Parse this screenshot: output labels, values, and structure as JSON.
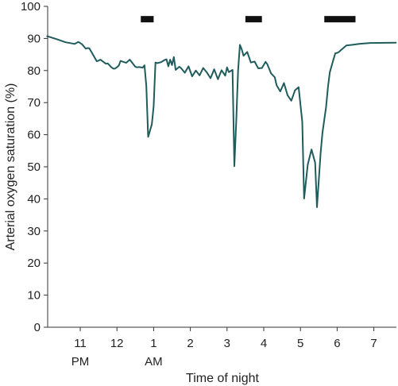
{
  "chart_data": {
    "type": "line",
    "xlabel": "Time of night",
    "ylabel": "Arterial oxygen saturation (%)",
    "xlim": [
      22.1,
      30.6
    ],
    "ylim": [
      0,
      100
    ],
    "y_ticks": [
      0,
      10,
      20,
      30,
      40,
      50,
      60,
      70,
      80,
      90,
      100
    ],
    "x_ticks": [
      {
        "value": 23,
        "label": "11",
        "sublabel": "PM"
      },
      {
        "value": 24,
        "label": "12",
        "sublabel": ""
      },
      {
        "value": 25,
        "label": "1",
        "sublabel": "AM"
      },
      {
        "value": 26,
        "label": "2",
        "sublabel": ""
      },
      {
        "value": 27,
        "label": "3",
        "sublabel": ""
      },
      {
        "value": 28,
        "label": "4",
        "sublabel": ""
      },
      {
        "value": 29,
        "label": "5",
        "sublabel": ""
      },
      {
        "value": 30,
        "label": "6",
        "sublabel": ""
      },
      {
        "value": 31,
        "label": "7",
        "sublabel": ""
      }
    ],
    "grid": false,
    "line_color": "#1f5c5c",
    "bar_color": "#111111",
    "event_bars": [
      {
        "start": 24.65,
        "end": 25.0,
        "y": 96
      },
      {
        "start": 27.5,
        "end": 27.95,
        "y": 96
      },
      {
        "start": 29.65,
        "end": 30.5,
        "y": 96
      }
    ],
    "series": [
      {
        "x": [
          22.1,
          22.35,
          22.6,
          22.85,
          22.95,
          23.05,
          23.15,
          23.2,
          23.25,
          23.45,
          23.5,
          23.55,
          23.7,
          23.75,
          23.85,
          23.9,
          23.95,
          24.05,
          24.1,
          24.25,
          24.35,
          24.5,
          24.55,
          24.6,
          24.7,
          24.75,
          24.8,
          24.85,
          24.95,
          25.0,
          25.05,
          25.1,
          25.2,
          25.3,
          25.35,
          25.4,
          25.45,
          25.5,
          25.55,
          25.6,
          25.7,
          25.75,
          25.85,
          25.95,
          26.05,
          26.15,
          26.25,
          26.35,
          26.45,
          26.55,
          26.65,
          26.75,
          26.85,
          26.95,
          27.0,
          27.05,
          27.15,
          27.2,
          27.25,
          27.3,
          27.35,
          27.4,
          27.45,
          27.55,
          27.65,
          27.75,
          27.8,
          27.85,
          27.95,
          28.05,
          28.1,
          28.2,
          28.3,
          28.35,
          28.45,
          28.55,
          28.65,
          28.75,
          28.85,
          28.95,
          29.05,
          29.1,
          29.2,
          29.3,
          29.4,
          29.45,
          29.55,
          29.6,
          29.7,
          29.75,
          29.8,
          29.9,
          29.95,
          30.0,
          30.05,
          30.1,
          30.15,
          30.25,
          30.4,
          30.6,
          30.9,
          31.6
        ],
        "y": [
          90.7,
          89.8,
          88.8,
          88.3,
          88.9,
          88.2,
          86.8,
          87.0,
          86.9,
          82.9,
          83.1,
          83.4,
          82.1,
          82.2,
          81.0,
          80.6,
          80.6,
          81.5,
          83.0,
          82.4,
          83.4,
          81.2,
          81.0,
          81.1,
          80.9,
          81.6,
          75.1,
          59.3,
          63.2,
          68.8,
          82.5,
          82.3,
          82.6,
          83.3,
          83.5,
          81.3,
          83.4,
          81.7,
          84.2,
          80.2,
          81.2,
          80.7,
          79.3,
          81.3,
          78.2,
          80.0,
          78.5,
          80.8,
          79.4,
          77.6,
          80.4,
          77.3,
          80.1,
          78.4,
          81.0,
          79.5,
          80.2,
          50.2,
          64.3,
          80.0,
          88.0,
          86.6,
          84.6,
          85.8,
          82.5,
          82.8,
          81.7,
          80.7,
          80.8,
          82.7,
          81.9,
          79.1,
          77.9,
          75.4,
          73.5,
          76.1,
          72.3,
          70.6,
          73.8,
          74.8,
          64.0,
          40.1,
          50.7,
          55.4,
          51.3,
          37.4,
          54.3,
          60.6,
          68.7,
          75.0,
          79.5,
          83.5,
          85.4,
          85.5,
          85.8,
          86.3,
          86.8,
          87.8,
          88.0,
          88.3,
          88.6,
          88.7
        ]
      }
    ]
  }
}
